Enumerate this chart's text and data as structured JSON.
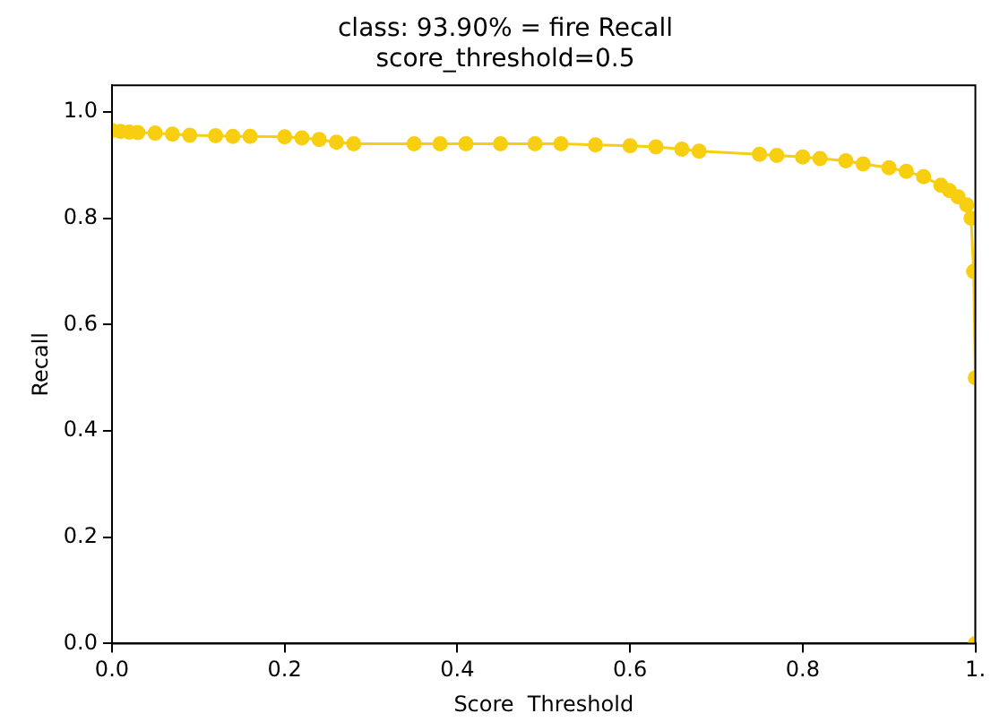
{
  "chart_data": {
    "type": "line",
    "title": [
      "class: 93.90% = fire Recall",
      "score_threshold=0.5"
    ],
    "xlabel": "Score  Threshold",
    "ylabel": "Recall",
    "x": [
      0,
      0.01,
      0.02,
      0.03,
      0.05,
      0.07,
      0.09,
      0.12,
      0.14,
      0.16,
      0.2,
      0.22,
      0.24,
      0.26,
      0.28,
      0.35,
      0.38,
      0.41,
      0.45,
      0.49,
      0.52,
      0.56,
      0.6,
      0.63,
      0.66,
      0.68,
      0.75,
      0.77,
      0.8,
      0.82,
      0.85,
      0.87,
      0.9,
      0.92,
      0.94,
      0.96,
      0.97,
      0.98,
      0.99,
      0.995,
      0.998,
      1.0,
      1.0
    ],
    "series": [
      {
        "color": "#f7cf10",
        "values": [
          0.965,
          0.963,
          0.962,
          0.961,
          0.96,
          0.958,
          0.956,
          0.955,
          0.954,
          0.954,
          0.953,
          0.951,
          0.948,
          0.943,
          0.94,
          0.94,
          0.94,
          0.94,
          0.94,
          0.94,
          0.94,
          0.938,
          0.936,
          0.934,
          0.93,
          0.926,
          0.92,
          0.918,
          0.915,
          0.912,
          0.908,
          0.902,
          0.895,
          0.888,
          0.878,
          0.862,
          0.852,
          0.84,
          0.825,
          0.8,
          0.7,
          0.5,
          0
        ]
      }
    ],
    "xlim": [
      0,
      1
    ],
    "xticks": [
      {
        "value": 0,
        "label": "0.0"
      },
      {
        "value": 0.2,
        "label": "0.2"
      },
      {
        "value": 0.4,
        "label": "0.4"
      },
      {
        "value": 0.6,
        "label": "0.6"
      },
      {
        "value": 0.8,
        "label": "0.8"
      },
      {
        "value": 1,
        "label": "1."
      }
    ],
    "ylim": [
      0,
      1.05
    ],
    "yticks": [
      {
        "value": 0,
        "label": "0.0"
      },
      {
        "value": 0.2,
        "label": "0.2"
      },
      {
        "value": 0.4,
        "label": "0.4"
      },
      {
        "value": 0.6,
        "label": "0.6"
      },
      {
        "value": 0.8,
        "label": "0.8"
      },
      {
        "value": 1,
        "label": "1.0"
      }
    ],
    "grid": false,
    "legend": false,
    "marker": "circle",
    "line_style": "solid"
  }
}
